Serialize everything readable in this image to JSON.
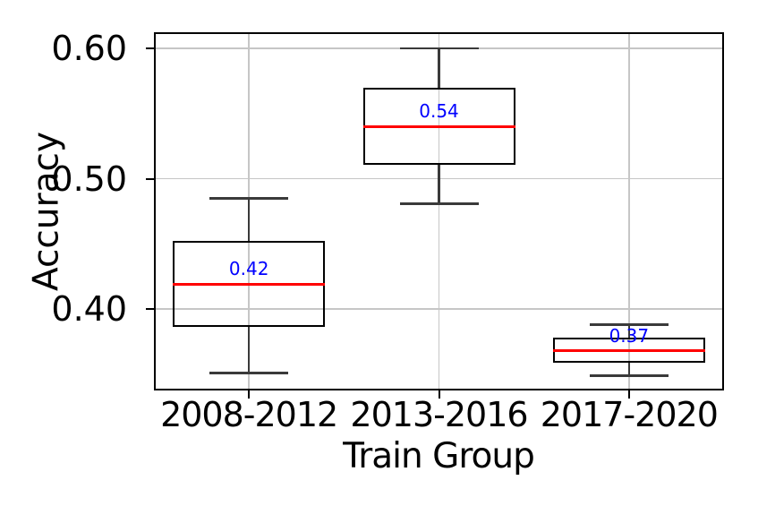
{
  "chart_data": {
    "type": "box",
    "title": "",
    "xlabel": "Train Group",
    "ylabel": "Accuracy",
    "categories": [
      "2008-2012",
      "2013-2016",
      "2017-2020"
    ],
    "boxes": [
      {
        "category": "2008-2012",
        "whislo": 0.351,
        "q1": 0.386,
        "med": 0.419,
        "q3": 0.452,
        "whishi": 0.485,
        "med_label": "0.42"
      },
      {
        "category": "2013-2016",
        "whislo": 0.481,
        "q1": 0.511,
        "med": 0.54,
        "q3": 0.57,
        "whishi": 0.6,
        "med_label": "0.54"
      },
      {
        "category": "2017-2020",
        "whislo": 0.349,
        "q1": 0.359,
        "med": 0.368,
        "q3": 0.378,
        "whishi": 0.388,
        "med_label": "0.37"
      }
    ],
    "yticks": [
      0.4,
      0.5,
      0.6
    ],
    "ytick_labels": [
      "0.40",
      "0.50",
      "0.60"
    ],
    "ylim": [
      0.3375,
      0.6125
    ],
    "grid": true,
    "legend": null,
    "colors": {
      "median": "#ff0000",
      "box_edge": "#000000",
      "whisker": "#3a3a3a",
      "grid": "#c6c6c6",
      "median_label": "#0000ff",
      "background": "#ffffff"
    }
  }
}
